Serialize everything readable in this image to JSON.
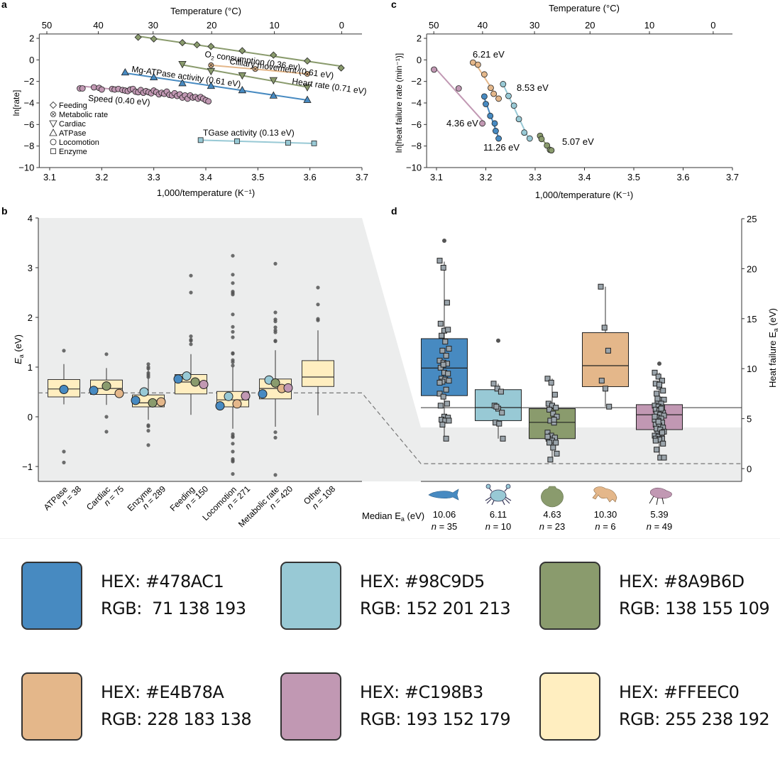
{
  "panels": {
    "a": {
      "letter": "a",
      "top_axis_label": "Temperature (°C)",
      "top_ticks": [
        "50",
        "40",
        "30",
        "20",
        "10",
        "0"
      ],
      "top_tick_values_c": [
        50,
        40,
        30,
        20,
        10,
        0
      ],
      "xlabel": "1,000/temperature (K⁻¹)",
      "ylabel": "ln[rate]",
      "x_ticks": [
        "3.1",
        "3.2",
        "3.3",
        "3.4",
        "3.5",
        "3.6",
        "3.7"
      ],
      "y_ticks": [
        "2",
        "0",
        "−2",
        "−4",
        "−6",
        "−8",
        "−10"
      ],
      "legend": [
        {
          "symbol": "diamond",
          "label": "Feeding"
        },
        {
          "symbol": "circle-x",
          "label": "Metabolic rate"
        },
        {
          "symbol": "triangle-down",
          "label": "Cardiac"
        },
        {
          "symbol": "triangle-up",
          "label": "ATPase"
        },
        {
          "symbol": "circle",
          "label": "Locomotion"
        },
        {
          "symbol": "square",
          "label": "Enzyme"
        }
      ]
    },
    "b": {
      "letter": "b",
      "ylabel_main": "E",
      "ylabel_sub": "a",
      "ylabel_unit": " (eV)",
      "y_ticks": [
        "4",
        "3",
        "2",
        "1",
        "0",
        "−1"
      ]
    },
    "c": {
      "letter": "c",
      "top_axis_label": "Temperature (°C)",
      "top_ticks": [
        "50",
        "40",
        "30",
        "20",
        "10",
        "0"
      ],
      "xlabel": "1,000/temperature (K⁻¹)",
      "ylabel": "ln[heat failure rate (min⁻¹)]",
      "x_ticks": [
        "3.1",
        "3.2",
        "3.3",
        "3.4",
        "3.5",
        "3.6",
        "3.7"
      ],
      "y_ticks": [
        "2",
        "0",
        "−2",
        "−4",
        "−6",
        "−8",
        "−10"
      ]
    },
    "d": {
      "letter": "d",
      "ylabel": "Heat failure E",
      "ylabel_sub": "a",
      "ylabel_unit": " (eV)",
      "y_ticks": [
        "25",
        "20",
        "15",
        "10",
        "5",
        "0"
      ],
      "median_label": "Median E",
      "median_label_sub": "a",
      "median_label_unit": " (eV)"
    }
  },
  "chart_data": [
    {
      "id": "a",
      "type": "scatter",
      "title": "",
      "xlabel": "1,000/temperature (K⁻¹)",
      "ylabel": "ln[rate]",
      "secondary_xlabel": "Temperature (°C)",
      "xlim": [
        3.08,
        3.7
      ],
      "ylim": [
        -10,
        2.4
      ],
      "legend_position": "left",
      "series": [
        {
          "name": "Cilliary movement (0.61 eV)",
          "symbol": "diamond",
          "color": "#8A9B6D",
          "x": [
            3.27,
            3.3,
            3.355,
            3.383,
            3.41,
            3.47,
            3.53,
            3.595,
            3.66
          ],
          "y": [
            2.1,
            1.95,
            1.6,
            1.4,
            1.25,
            0.85,
            0.45,
            -0.1,
            -0.75
          ]
        },
        {
          "name": "O2 consumption (0.36 eV)",
          "symbol": "circle-x",
          "color": "#E4B78A",
          "x": [
            3.41,
            3.495,
            3.595
          ],
          "y": [
            -0.5,
            -0.85,
            -1.3
          ]
        },
        {
          "name": "Heart rate (0.71 eV)",
          "symbol": "triangle-down",
          "color": "#8A9B6D",
          "x": [
            3.355,
            3.41,
            3.47,
            3.53,
            3.595
          ],
          "y": [
            -0.4,
            -1.05,
            -1.45,
            -1.9,
            -2.55
          ]
        },
        {
          "name": "Mg-ATPase activity (0.61 eV)",
          "symbol": "triangle-up",
          "color": "#478AC1",
          "x": [
            3.245,
            3.3,
            3.355,
            3.41,
            3.47,
            3.53,
            3.595
          ],
          "y": [
            -1.15,
            -1.6,
            -2.15,
            -2.4,
            -2.8,
            -3.3,
            -3.7
          ]
        },
        {
          "name": "Speed (0.40 eV)",
          "symbol": "circle",
          "color": "#C198B3",
          "x": [
            3.158,
            3.163,
            3.185,
            3.195,
            3.2,
            3.22,
            3.225,
            3.232,
            3.24,
            3.245,
            3.25,
            3.255,
            3.26,
            3.265,
            3.27,
            3.275,
            3.28,
            3.285,
            3.29,
            3.295,
            3.3,
            3.305,
            3.31,
            3.315,
            3.32,
            3.325,
            3.33,
            3.335,
            3.34,
            3.345,
            3.35,
            3.355,
            3.36,
            3.365,
            3.37,
            3.375,
            3.38,
            3.385,
            3.39,
            3.395,
            3.4,
            3.405
          ],
          "y": [
            -2.65,
            -2.65,
            -2.55,
            -2.6,
            -2.75,
            -2.7,
            -2.75,
            -2.7,
            -2.8,
            -2.85,
            -2.9,
            -2.75,
            -2.7,
            -2.95,
            -3.0,
            -2.8,
            -3.05,
            -2.9,
            -3.0,
            -3.1,
            -2.85,
            -3.0,
            -3.2,
            -3.05,
            -3.15,
            -2.95,
            -3.25,
            -3.3,
            -3.1,
            -3.35,
            -3.2,
            -3.5,
            -3.3,
            -3.6,
            -3.3,
            -3.5,
            -3.45,
            -3.6,
            -3.45,
            -3.6,
            -3.75,
            -3.85
          ]
        },
        {
          "name": "TGase activity (0.13 eV)",
          "symbol": "square",
          "color": "#98C9D5",
          "x": [
            3.39,
            3.46,
            3.558,
            3.608
          ],
          "y": [
            -7.45,
            -7.55,
            -7.7,
            -7.75
          ]
        }
      ],
      "annotations": [
        "Cilliary movement (0.61 eV)",
        "O2 consumption (0.36 ev)",
        "Heart rate (0.71 eV)",
        "Mg-ATPase activity (0.61 eV)",
        "Speed (0.40 eV)",
        "TGase activity (0.13 eV)"
      ]
    },
    {
      "id": "c",
      "type": "scatter",
      "title": "",
      "xlabel": "1,000/temperature (K⁻¹)",
      "ylabel": "ln[heat failure rate (min⁻¹)]",
      "secondary_xlabel": "Temperature (°C)",
      "xlim": [
        3.08,
        3.7
      ],
      "ylim": [
        -10,
        2.4
      ],
      "series": [
        {
          "name": "4.36 eV",
          "color": "#C198B3",
          "x": [
            3.095,
            3.145,
            3.193
          ],
          "y": [
            -0.9,
            -2.65,
            -5.9
          ]
        },
        {
          "name": "6.21 eV",
          "color": "#E4B78A",
          "x": [
            3.174,
            3.184,
            3.197,
            3.21,
            3.216,
            3.226
          ],
          "y": [
            -0.25,
            -0.45,
            -1.35,
            -2.6,
            -3.15,
            -3.6
          ]
        },
        {
          "name": "11.26 eV",
          "color": "#478AC1",
          "x": [
            3.197,
            3.2,
            3.209,
            3.218,
            3.22,
            3.226
          ],
          "y": [
            -3.4,
            -4.1,
            -5.2,
            -5.9,
            -6.6,
            -7.3
          ]
        },
        {
          "name": "8.53 eV",
          "color": "#98C9D5",
          "x": [
            3.235,
            3.246,
            3.257,
            3.267,
            3.278,
            3.289
          ],
          "y": [
            -2.25,
            -3.35,
            -4.25,
            -5.5,
            -6.75,
            -7.3
          ]
        },
        {
          "name": "5.07 eV",
          "color": "#8A9B6D",
          "x": [
            3.31,
            3.313,
            3.324,
            3.33,
            3.333
          ],
          "y": [
            -7.05,
            -7.35,
            -7.95,
            -8.35,
            -8.4
          ]
        }
      ],
      "annotations": [
        "6.21 eV",
        "8.53 eV",
        "4.36 eV",
        "11.26 eV",
        "5.07 eV"
      ]
    },
    {
      "id": "b",
      "type": "box",
      "title": "",
      "ylabel": "Ea (eV)",
      "ylim": [
        -1.3,
        4
      ],
      "reference_line": 0.48,
      "categories": [
        "ATPase",
        "Cardiac",
        "Enzyme",
        "Feeding",
        "Locomotion",
        "Metabolic rate",
        "Other"
      ],
      "n": [
        38,
        75,
        289,
        150,
        271,
        420,
        108
      ],
      "boxes": [
        {
          "q1": 0.4,
          "median": 0.56,
          "q3": 0.75,
          "whisker_low": 0.25,
          "whisker_high": 1.06
        },
        {
          "q1": 0.45,
          "median": 0.57,
          "q3": 0.74,
          "whisker_low": 0.24,
          "whisker_high": 0.98
        },
        {
          "q1": 0.2,
          "median": 0.28,
          "q3": 0.44,
          "whisker_low": -0.06,
          "whisker_high": 0.98
        },
        {
          "q1": 0.46,
          "median": 0.7,
          "q3": 0.85,
          "whisker_low": 0.04,
          "whisker_high": 1.26
        },
        {
          "q1": 0.2,
          "median": 0.34,
          "q3": 0.51,
          "whisker_low": -0.24,
          "whisker_high": 1.0
        },
        {
          "q1": 0.36,
          "median": 0.57,
          "q3": 0.76,
          "whisker_low": -0.2,
          "whisker_high": 1.34
        },
        {
          "q1": 0.61,
          "median": 0.8,
          "q3": 1.13,
          "whisker_low": 0.03,
          "whisker_high": 1.74
        }
      ],
      "outliers": [
        [
          1.33,
          -0.7,
          -0.92
        ],
        [
          1.26,
          0.0,
          -0.3
        ],
        [
          1.06,
          1.0,
          0.97,
          0.88,
          0.84,
          0.8,
          -0.17,
          -0.19,
          -0.28,
          -0.57
        ],
        [
          2.84,
          2.5,
          1.62,
          1.55,
          1.53,
          1.46
        ],
        [
          3.24,
          2.86,
          2.69,
          2.52,
          2.49,
          2.46,
          2.06,
          1.81,
          1.71,
          1.6,
          1.28,
          1.27,
          1.14,
          1.1,
          1.03,
          -0.35,
          -0.39,
          -0.41,
          -0.54,
          -0.7,
          -0.85,
          -0.88,
          -0.9,
          -1.15
        ],
        [
          3.08,
          2.1,
          1.96,
          1.92,
          1.8,
          1.74,
          1.7,
          1.53,
          1.52,
          -0.31,
          -0.42,
          -1.17
        ],
        [
          2.6,
          2.26,
          1.97,
          1.94
        ]
      ],
      "taxon_points": [
        [
          {
            "color": "#478AC1",
            "value": 0.55
          }
        ],
        [
          {
            "color": "#478AC1",
            "value": 0.53
          },
          {
            "color": "#8A9B6D",
            "value": 0.62
          },
          {
            "color": "#E4B78A",
            "value": 0.47
          }
        ],
        [
          {
            "color": "#478AC1",
            "value": 0.33
          },
          {
            "color": "#98C9D5",
            "value": 0.5
          },
          {
            "color": "#8A9B6D",
            "value": 0.28
          },
          {
            "color": "#E4B78A",
            "value": 0.3
          }
        ],
        [
          {
            "color": "#478AC1",
            "value": 0.76
          },
          {
            "color": "#98C9D5",
            "value": 0.82
          },
          {
            "color": "#8A9B6D",
            "value": 0.7
          },
          {
            "color": "#C198B3",
            "value": 0.65
          }
        ],
        [
          {
            "color": "#478AC1",
            "value": 0.22
          },
          {
            "color": "#98C9D5",
            "value": 0.41
          },
          {
            "color": "#E4B78A",
            "value": 0.26
          },
          {
            "color": "#C198B3",
            "value": 0.42
          }
        ],
        [
          {
            "color": "#478AC1",
            "value": 0.46
          },
          {
            "color": "#98C9D5",
            "value": 0.74
          },
          {
            "color": "#8A9B6D",
            "value": 0.68
          },
          {
            "color": "#E4B78A",
            "value": 0.57
          },
          {
            "color": "#C198B3",
            "value": 0.58
          }
        ],
        []
      ]
    },
    {
      "id": "d",
      "type": "box",
      "title": "",
      "ylabel": "Heat failure Ea (eV)",
      "ylim": [
        -1.3,
        25
      ],
      "reference_line_solid": 6.1,
      "reference_line_dashed": 0.48,
      "categories": [
        "Fish",
        "Crab",
        "Scallop",
        "Frog",
        "Fly"
      ],
      "icons": [
        "fish-icon",
        "crab-icon",
        "scallop-icon",
        "frog-icon",
        "fly-icon"
      ],
      "colors": [
        "#478AC1",
        "#98C9D5",
        "#8A9B6D",
        "#E4B78A",
        "#C198B3"
      ],
      "medians": [
        "10.06",
        "6.11",
        "4.63",
        "10.30",
        "5.39"
      ],
      "n": [
        35,
        10,
        23,
        6,
        49
      ],
      "n_labels": [
        "n = 35",
        "n = 10",
        "n = 23",
        "n = 6",
        "n = 49"
      ],
      "boxes": [
        {
          "q1": 7.3,
          "median": 10.06,
          "q3": 13.0,
          "whisker_low": 2.9,
          "whisker_high": 20.7
        },
        {
          "q1": 4.8,
          "median": 6.11,
          "q3": 7.9,
          "whisker_low": 3.0,
          "whisker_high": 8.5
        },
        {
          "q1": 3.0,
          "median": 4.63,
          "q3": 6.0,
          "whisker_low": 0.9,
          "whisker_high": 9.0
        },
        {
          "q1": 8.2,
          "median": 10.3,
          "q3": 13.6,
          "whisker_low": 6.2,
          "whisker_high": 18.2
        },
        {
          "q1": 3.9,
          "median": 5.39,
          "q3": 6.4,
          "whisker_low": 1.1,
          "whisker_high": 9.6
        }
      ],
      "outliers": [
        [
          22.8
        ],
        [
          12.8
        ],
        [],
        [],
        [
          10.5
        ]
      ],
      "points": [
        [
          20.8,
          20.1,
          16.6,
          14.5,
          13.8,
          13.9,
          13.3,
          12.7,
          12.0,
          11.8,
          11.3,
          10.8,
          10.6,
          10.5,
          10.1,
          9.6,
          9.5,
          9.0,
          8.9,
          8.8,
          8.7,
          7.9,
          7.5,
          7.2,
          6.5,
          6.3,
          5.2,
          5.1,
          4.9,
          4.8,
          4.8,
          4.4,
          3.0,
          8.6,
          10.4
        ],
        [
          8.5,
          8.0,
          7.7,
          6.3,
          6.0,
          5.6,
          4.6,
          4.5,
          3.0,
          6.2
        ],
        [
          9.0,
          8.6,
          7.4,
          6.5,
          6.3,
          6.1,
          5.9,
          5.5,
          5.2,
          4.8,
          4.6,
          3.6,
          3.3,
          3.1,
          3.0,
          2.8,
          2.6,
          2.6,
          2.1,
          1.5,
          0.9,
          4.9,
          3.2
        ],
        [
          18.2,
          14.1,
          11.8,
          8.8,
          8.0,
          6.2
        ],
        [
          9.6,
          9.2,
          8.8,
          8.5,
          8.2,
          7.8,
          7.5,
          6.9,
          6.9,
          6.7,
          6.5,
          6.3,
          6.2,
          6.1,
          5.9,
          5.8,
          5.6,
          5.5,
          5.4,
          5.3,
          5.1,
          5.0,
          4.9,
          4.8,
          4.6,
          4.4,
          4.3,
          4.1,
          4.0,
          3.9,
          3.7,
          3.5,
          3.4,
          3.3,
          3.2,
          3.0,
          3.0,
          2.9,
          2.5,
          1.9,
          1.1,
          1.1,
          7.0,
          6.0,
          5.2,
          4.7,
          3.6,
          2.8,
          8.4
        ]
      ]
    }
  ],
  "palette": [
    {
      "hex_label": "HEX: #478AC1",
      "rgb_label": "RGB:  71 138 193",
      "color": "#478AC1"
    },
    {
      "hex_label": "HEX: #98C9D5",
      "rgb_label": "RGB: 152 201 213",
      "color": "#98C9D5"
    },
    {
      "hex_label": "HEX: #8A9B6D",
      "rgb_label": "RGB: 138 155 109",
      "color": "#8A9B6D"
    },
    {
      "hex_label": "HEX: #E4B78A",
      "rgb_label": "RGB: 228 183 138",
      "color": "#E4B78A"
    },
    {
      "hex_label": "HEX: #C198B3",
      "rgb_label": "RGB: 193 152 179",
      "color": "#C198B3"
    },
    {
      "hex_label": "HEX: #FFEEC0",
      "rgb_label": "RGB: 255 238 192",
      "color": "#FFEEC0"
    }
  ]
}
